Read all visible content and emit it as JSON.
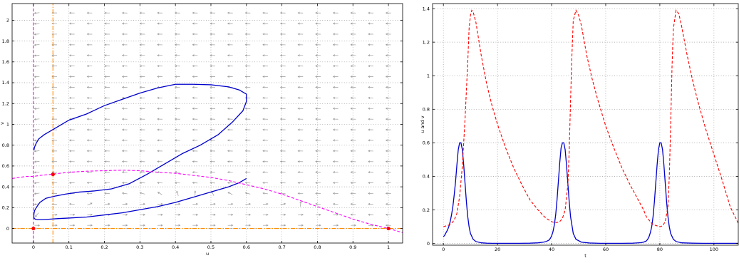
{
  "chart_data": [
    {
      "type": "line",
      "title": "",
      "xlabel": "u",
      "ylabel": "v",
      "xlim": [
        -0.06,
        1.04
      ],
      "ylim": [
        -0.14,
        2.16
      ],
      "xticks": [
        0,
        0.1,
        0.2,
        0.3,
        0.4,
        0.5,
        0.6,
        0.7,
        0.8,
        0.9,
        1
      ],
      "yticks": [
        0,
        0.2,
        0.4,
        0.6,
        0.8,
        1,
        1.2,
        1.4,
        1.6,
        1.8,
        2
      ],
      "xtick_labels": [
        "0",
        "0.1",
        "0.2",
        "0.3",
        "0.4",
        "0.5",
        "0.6",
        "0.7",
        "0.8",
        "0.9",
        "1"
      ],
      "ytick_labels": [
        "0",
        "0.2",
        "0.4",
        "0.6",
        "0.8",
        "1",
        "1.2",
        "1.4",
        "1.6",
        "1.8",
        "2"
      ],
      "grid": true,
      "vector_field": {
        "color": "#9b9b9b",
        "x_range": [
          0.01,
          1.0
        ],
        "y_range": [
          0.03,
          2.07
        ],
        "nx": 21,
        "ny": 21
      },
      "series": [
        {
          "style": "solid",
          "color": "#0000cc",
          "x": [
            0.0014,
            0.003,
            0.008,
            0.015,
            0.03,
            0.06,
            0.1,
            0.15,
            0.2,
            0.25,
            0.3,
            0.35,
            0.4,
            0.45,
            0.5,
            0.55,
            0.58,
            0.6,
            0.6,
            0.59,
            0.56,
            0.52,
            0.47,
            0.42,
            0.37,
            0.32,
            0.27,
            0.22,
            0.17,
            0.13,
            0.09,
            0.06,
            0.035,
            0.018,
            0.008,
            0.003,
            0.0015,
            0.0012,
            0.0012,
            0.0013,
            0.0015,
            0.002,
            0.003,
            0.005,
            0.008,
            0.012,
            0.017,
            0.024,
            0.035,
            0.05,
            0.07,
            0.1,
            0.15,
            0.2,
            0.25,
            0.3,
            0.35,
            0.4,
            0.45,
            0.5,
            0.55,
            0.58,
            0.6
          ],
          "y": [
            0.75,
            0.78,
            0.82,
            0.86,
            0.9,
            0.96,
            1.04,
            1.1,
            1.18,
            1.24,
            1.3,
            1.35,
            1.385,
            1.385,
            1.38,
            1.36,
            1.33,
            1.29,
            1.22,
            1.13,
            1.02,
            0.9,
            0.8,
            0.72,
            0.62,
            0.52,
            0.43,
            0.38,
            0.36,
            0.35,
            0.33,
            0.31,
            0.29,
            0.25,
            0.2,
            0.17,
            0.14,
            0.12,
            0.115,
            0.11,
            0.105,
            0.1,
            0.095,
            0.09,
            0.087,
            0.085,
            0.085,
            0.085,
            0.087,
            0.09,
            0.095,
            0.1,
            0.11,
            0.13,
            0.15,
            0.18,
            0.21,
            0.25,
            0.3,
            0.35,
            0.4,
            0.44,
            0.48
          ]
        },
        {
          "style": "dashed",
          "color": "#ff00ff",
          "x": [
            -0.06,
            -0.04,
            -0.02,
            0,
            0.02,
            0.05,
            0.1,
            0.15,
            0.2,
            0.25,
            0.3,
            0.35,
            0.4,
            0.45,
            0.5,
            0.55,
            0.6,
            0.65,
            0.7,
            0.75,
            0.8,
            0.85,
            0.9,
            0.95,
            1,
            1.04
          ],
          "y": [
            0.48,
            0.49,
            0.5,
            0.5,
            0.51,
            0.52,
            0.54,
            0.55,
            0.555,
            0.56,
            0.555,
            0.54,
            0.53,
            0.51,
            0.49,
            0.46,
            0.42,
            0.38,
            0.33,
            0.27,
            0.21,
            0.15,
            0.09,
            0.04,
            0,
            -0.04
          ]
        },
        {
          "style": "dashed",
          "color": "#ff00ff",
          "x": [
            0,
            0
          ],
          "y": [
            -0.14,
            2.16
          ]
        },
        {
          "style": "dashdot",
          "color": "#ff8c00",
          "x": [
            0.055,
            0.055
          ],
          "y": [
            -0.14,
            2.16
          ]
        },
        {
          "style": "dashdot",
          "color": "#ff8c00",
          "x": [
            -0.06,
            1.04
          ],
          "y": [
            0,
            0
          ]
        }
      ],
      "points": {
        "color": "#ff0000",
        "x": [
          0,
          0.055,
          1
        ],
        "y": [
          0,
          0.52,
          0
        ]
      }
    },
    {
      "type": "line",
      "title": "",
      "xlabel": "t",
      "ylabel": "u and v",
      "xlim": [
        -4,
        109
      ],
      "ylim": [
        -0.01,
        1.43
      ],
      "xticks": [
        0,
        20,
        40,
        60,
        80,
        100
      ],
      "yticks": [
        0,
        0.2,
        0.4,
        0.6,
        0.8,
        1,
        1.2,
        1.4
      ],
      "xtick_labels": [
        "0",
        "20",
        "40",
        "60",
        "80",
        "100"
      ],
      "ytick_labels": [
        "0",
        "0.2",
        "0.4",
        "0.6",
        "0.8",
        "1",
        "1.2",
        "1.4"
      ],
      "grid": true,
      "series": [
        {
          "style": "solid",
          "color": "#0000cc",
          "x": [
            0,
            0.5,
            1,
            1.5,
            2,
            2.5,
            3,
            3.5,
            4,
            4.5,
            5,
            5.5,
            6,
            6.5,
            7,
            7.5,
            8,
            8.5,
            9,
            9.5,
            10,
            11,
            12,
            14,
            16,
            18,
            20,
            24,
            28,
            32,
            35,
            37,
            38,
            39,
            39.5,
            40,
            40.5,
            41,
            41.5,
            42,
            42.5,
            43,
            43.5,
            44,
            44.5,
            45,
            45.5,
            46,
            46.5,
            47,
            48,
            49,
            51,
            54,
            58,
            62,
            66,
            70,
            73,
            74,
            75,
            75.5,
            76,
            76.5,
            77,
            77.5,
            78,
            78.5,
            79,
            79.5,
            80,
            80.5,
            81,
            81.5,
            82,
            82.5,
            83,
            83.5,
            84,
            85,
            86,
            88,
            92,
            96,
            100,
            104,
            109
          ],
          "y": [
            0.04,
            0.05,
            0.065,
            0.08,
            0.1,
            0.13,
            0.17,
            0.22,
            0.29,
            0.37,
            0.47,
            0.56,
            0.6,
            0.6,
            0.56,
            0.47,
            0.36,
            0.25,
            0.16,
            0.1,
            0.06,
            0.025,
            0.012,
            0.004,
            0.002,
            0.001,
            0.001,
            0.001,
            0.001,
            0.002,
            0.004,
            0.008,
            0.012,
            0.02,
            0.03,
            0.045,
            0.07,
            0.11,
            0.17,
            0.26,
            0.37,
            0.48,
            0.57,
            0.6,
            0.6,
            0.56,
            0.47,
            0.36,
            0.25,
            0.16,
            0.06,
            0.025,
            0.008,
            0.003,
            0.001,
            0.001,
            0.001,
            0.002,
            0.005,
            0.008,
            0.015,
            0.025,
            0.04,
            0.065,
            0.1,
            0.16,
            0.25,
            0.36,
            0.47,
            0.56,
            0.6,
            0.6,
            0.56,
            0.47,
            0.36,
            0.25,
            0.16,
            0.1,
            0.06,
            0.025,
            0.012,
            0.004,
            0.002,
            0.001,
            0.001,
            0.001,
            0.001
          ]
        },
        {
          "style": "dashed",
          "color": "#ff0000",
          "x": [
            0,
            1,
            2,
            3,
            4,
            5,
            6,
            7,
            8,
            9,
            9.5,
            10,
            10.5,
            11,
            12,
            13,
            14,
            16,
            18,
            20,
            23,
            26,
            29,
            32,
            35,
            37,
            38,
            39,
            40,
            41,
            42,
            43,
            44,
            45,
            46,
            46.5,
            47,
            47.5,
            48,
            49,
            50,
            51,
            53,
            55,
            57,
            60,
            63,
            66,
            69,
            72,
            74,
            75,
            76,
            77,
            78,
            79,
            80,
            81,
            82,
            83,
            83.5,
            84,
            84.5,
            85,
            86,
            87,
            88,
            90,
            92,
            94,
            97,
            100,
            103,
            106,
            109
          ],
          "y": [
            0.1,
            0.105,
            0.11,
            0.12,
            0.14,
            0.18,
            0.28,
            0.46,
            0.74,
            1.08,
            1.28,
            1.36,
            1.39,
            1.38,
            1.32,
            1.22,
            1.12,
            0.95,
            0.82,
            0.71,
            0.57,
            0.45,
            0.35,
            0.26,
            0.2,
            0.165,
            0.15,
            0.14,
            0.13,
            0.125,
            0.125,
            0.13,
            0.15,
            0.2,
            0.35,
            0.55,
            0.85,
            1.12,
            1.33,
            1.39,
            1.36,
            1.3,
            1.12,
            0.98,
            0.86,
            0.7,
            0.57,
            0.45,
            0.35,
            0.26,
            0.2,
            0.16,
            0.14,
            0.12,
            0.11,
            0.105,
            0.1,
            0.105,
            0.13,
            0.22,
            0.4,
            0.7,
            1.05,
            1.28,
            1.39,
            1.37,
            1.3,
            1.13,
            0.98,
            0.85,
            0.68,
            0.53,
            0.38,
            0.22,
            0.12
          ]
        }
      ]
    }
  ]
}
